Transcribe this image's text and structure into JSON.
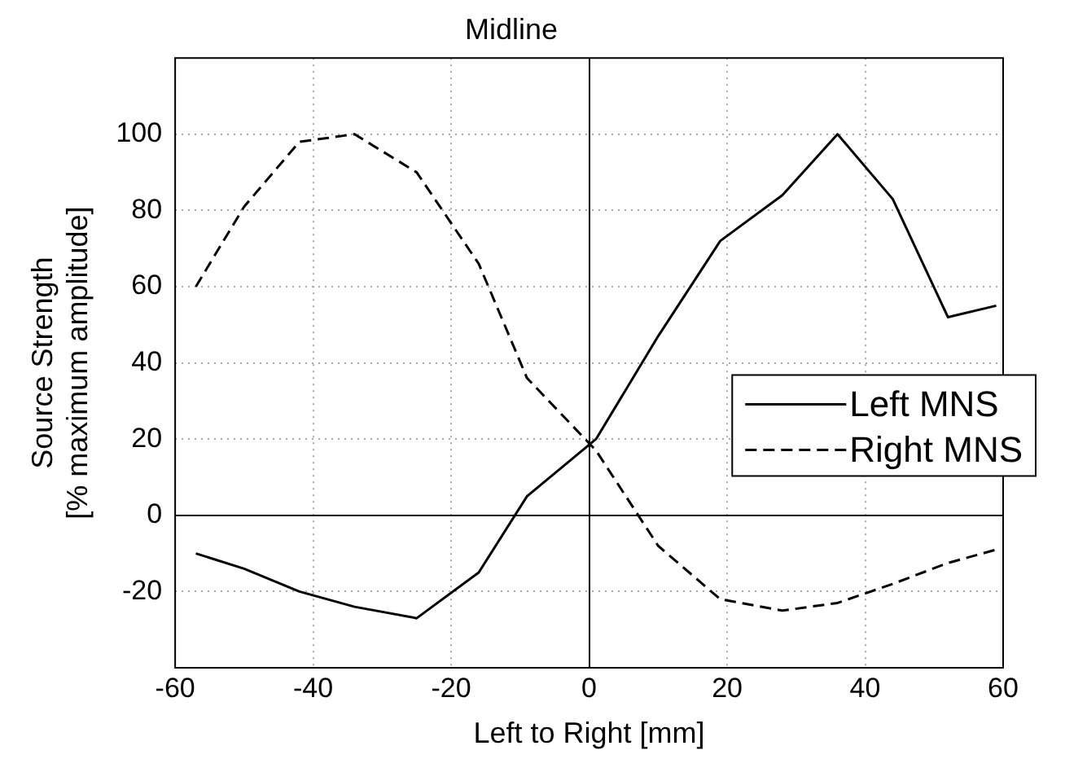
{
  "chart_data": {
    "type": "line",
    "title": "Midline",
    "xlabel": "Left to Right [mm]",
    "ylabel": "Source Strength\n[% maximum amplitude]",
    "x": [
      -57,
      -50,
      -42,
      -34,
      -25,
      -16,
      -9,
      1,
      10,
      19,
      28,
      36,
      44,
      52,
      59
    ],
    "series": [
      {
        "name": "Left MNS",
        "color": "#000000",
        "line_style": "solid",
        "values": [
          -10,
          -14,
          -20,
          -24,
          -27,
          -15,
          5,
          20,
          47,
          72,
          84,
          100,
          83,
          52,
          55
        ]
      },
      {
        "name": "Right MNS",
        "color": "#000000",
        "line_style": "dashed",
        "values": [
          60,
          81,
          98,
          100,
          90,
          66,
          36,
          17,
          -8,
          -22,
          -25,
          -23,
          -18,
          -12.5,
          -9
        ]
      }
    ],
    "xlim": [
      -60,
      60
    ],
    "xticks": [
      -60,
      -40,
      -20,
      0,
      20,
      40,
      60
    ],
    "ylim": [
      -40,
      120
    ],
    "yticks": [
      -20,
      0,
      20,
      40,
      60,
      80,
      100
    ],
    "grid": true,
    "legend": "right",
    "marker": "none"
  }
}
